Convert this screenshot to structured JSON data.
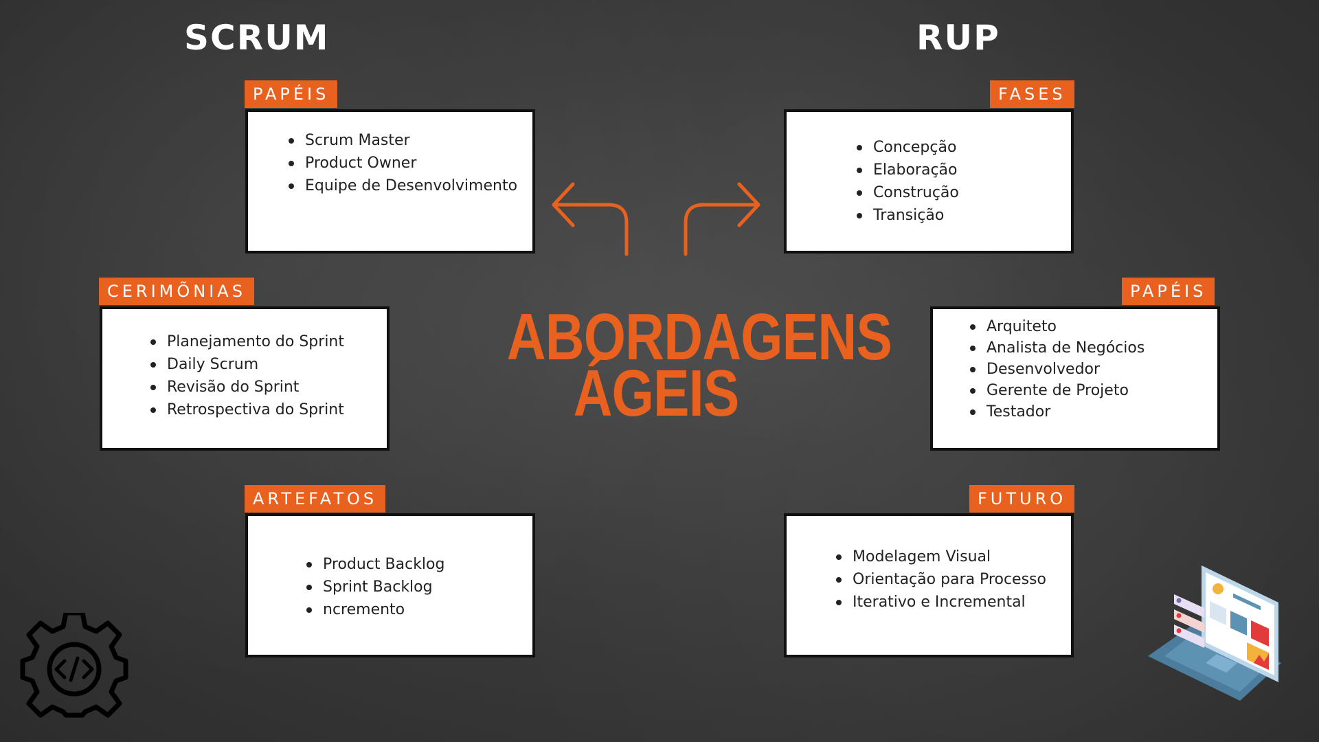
{
  "headings": {
    "left": "SCRUM",
    "right": "RUP"
  },
  "center_title": {
    "line1": "ABORDAGENS",
    "line2": "ÁGEIS"
  },
  "scrum": {
    "papeis": {
      "label": "PAPÉIS",
      "items": [
        "Scrum Master",
        " Product Owner",
        "Equipe de Desenvolvimento"
      ]
    },
    "cerimonias": {
      "label": "CERIMÕNIAS",
      "items": [
        "Planejamento do Sprint",
        "Daily Scrum",
        "Revisão do Sprint",
        "Retrospectiva do Sprint"
      ]
    },
    "artefatos": {
      "label": "ARTEFATOS",
      "items": [
        "Product Backlog",
        "Sprint Backlog",
        " ncremento"
      ]
    }
  },
  "rup": {
    "fases": {
      "label": "FASES",
      "items": [
        "Concepção",
        "Elaboração",
        "Construção",
        "Transição"
      ]
    },
    "papeis": {
      "label": "PAPÉIS",
      "items": [
        "Arquiteto",
        "Analista de Negócios",
        "Desenvolvedor",
        "Gerente de Projeto",
        "Testador"
      ]
    },
    "futuro": {
      "label": "FUTURO",
      "items": [
        "Modelagem Visual",
        " Orientação para Processo",
        " Iterativo e Incremental"
      ]
    }
  },
  "colors": {
    "accent": "#e8611e",
    "background": "#3a3a3a",
    "card": "#ffffff"
  },
  "icons": [
    "arrow-left-icon",
    "arrow-right-icon",
    "gear-code-icon",
    "laptop-dashboard-icon"
  ]
}
